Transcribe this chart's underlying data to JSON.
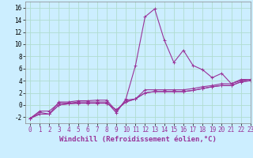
{
  "xlabel": "Windchill (Refroidissement éolien,°C)",
  "background_color": "#cceeff",
  "grid_color": "#b0ddd0",
  "line_color": "#993399",
  "x_data": [
    0,
    1,
    2,
    3,
    4,
    5,
    6,
    7,
    8,
    9,
    10,
    11,
    12,
    13,
    14,
    15,
    16,
    17,
    18,
    19,
    20,
    21,
    22,
    23
  ],
  "series": [
    [
      -2.2,
      -1.2,
      -1.5,
      0.5,
      0.5,
      0.7,
      0.7,
      0.8,
      0.8,
      -1.0,
      0.8,
      1.0,
      2.5,
      2.5,
      2.5,
      2.5,
      2.5,
      2.7,
      3.0,
      3.2,
      3.5,
      3.5,
      4.0,
      4.2
    ],
    [
      -2.2,
      -1.0,
      -1.0,
      0.3,
      0.3,
      0.5,
      0.5,
      0.5,
      0.5,
      -1.3,
      1.0,
      6.5,
      14.5,
      15.8,
      10.7,
      7.0,
      9.0,
      6.5,
      5.8,
      4.5,
      5.2,
      3.5,
      4.2,
      4.2
    ],
    [
      -2.2,
      -1.5,
      -1.5,
      0.0,
      0.2,
      0.3,
      0.3,
      0.3,
      0.3,
      -0.8,
      0.5,
      1.0,
      2.0,
      2.2,
      2.2,
      2.2,
      2.2,
      2.4,
      2.7,
      3.0,
      3.2,
      3.2,
      3.8,
      4.0
    ],
    [
      -2.2,
      -1.5,
      -1.5,
      0.0,
      0.2,
      0.3,
      0.3,
      0.3,
      0.3,
      -0.8,
      0.5,
      1.0,
      2.0,
      2.2,
      2.2,
      2.2,
      2.2,
      2.4,
      2.7,
      3.0,
      3.2,
      3.2,
      3.8,
      4.0
    ]
  ],
  "ylim": [
    -3,
    17
  ],
  "xlim": [
    -0.5,
    23
  ],
  "yticks": [
    -2,
    0,
    2,
    4,
    6,
    8,
    10,
    12,
    14,
    16
  ],
  "xticks": [
    0,
    1,
    2,
    3,
    4,
    5,
    6,
    7,
    8,
    9,
    10,
    11,
    12,
    13,
    14,
    15,
    16,
    17,
    18,
    19,
    20,
    21,
    22,
    23
  ],
  "marker": "+",
  "markersize": 3,
  "linewidth": 0.8,
  "xlabel_fontsize": 6.5,
  "tick_fontsize": 5.5
}
